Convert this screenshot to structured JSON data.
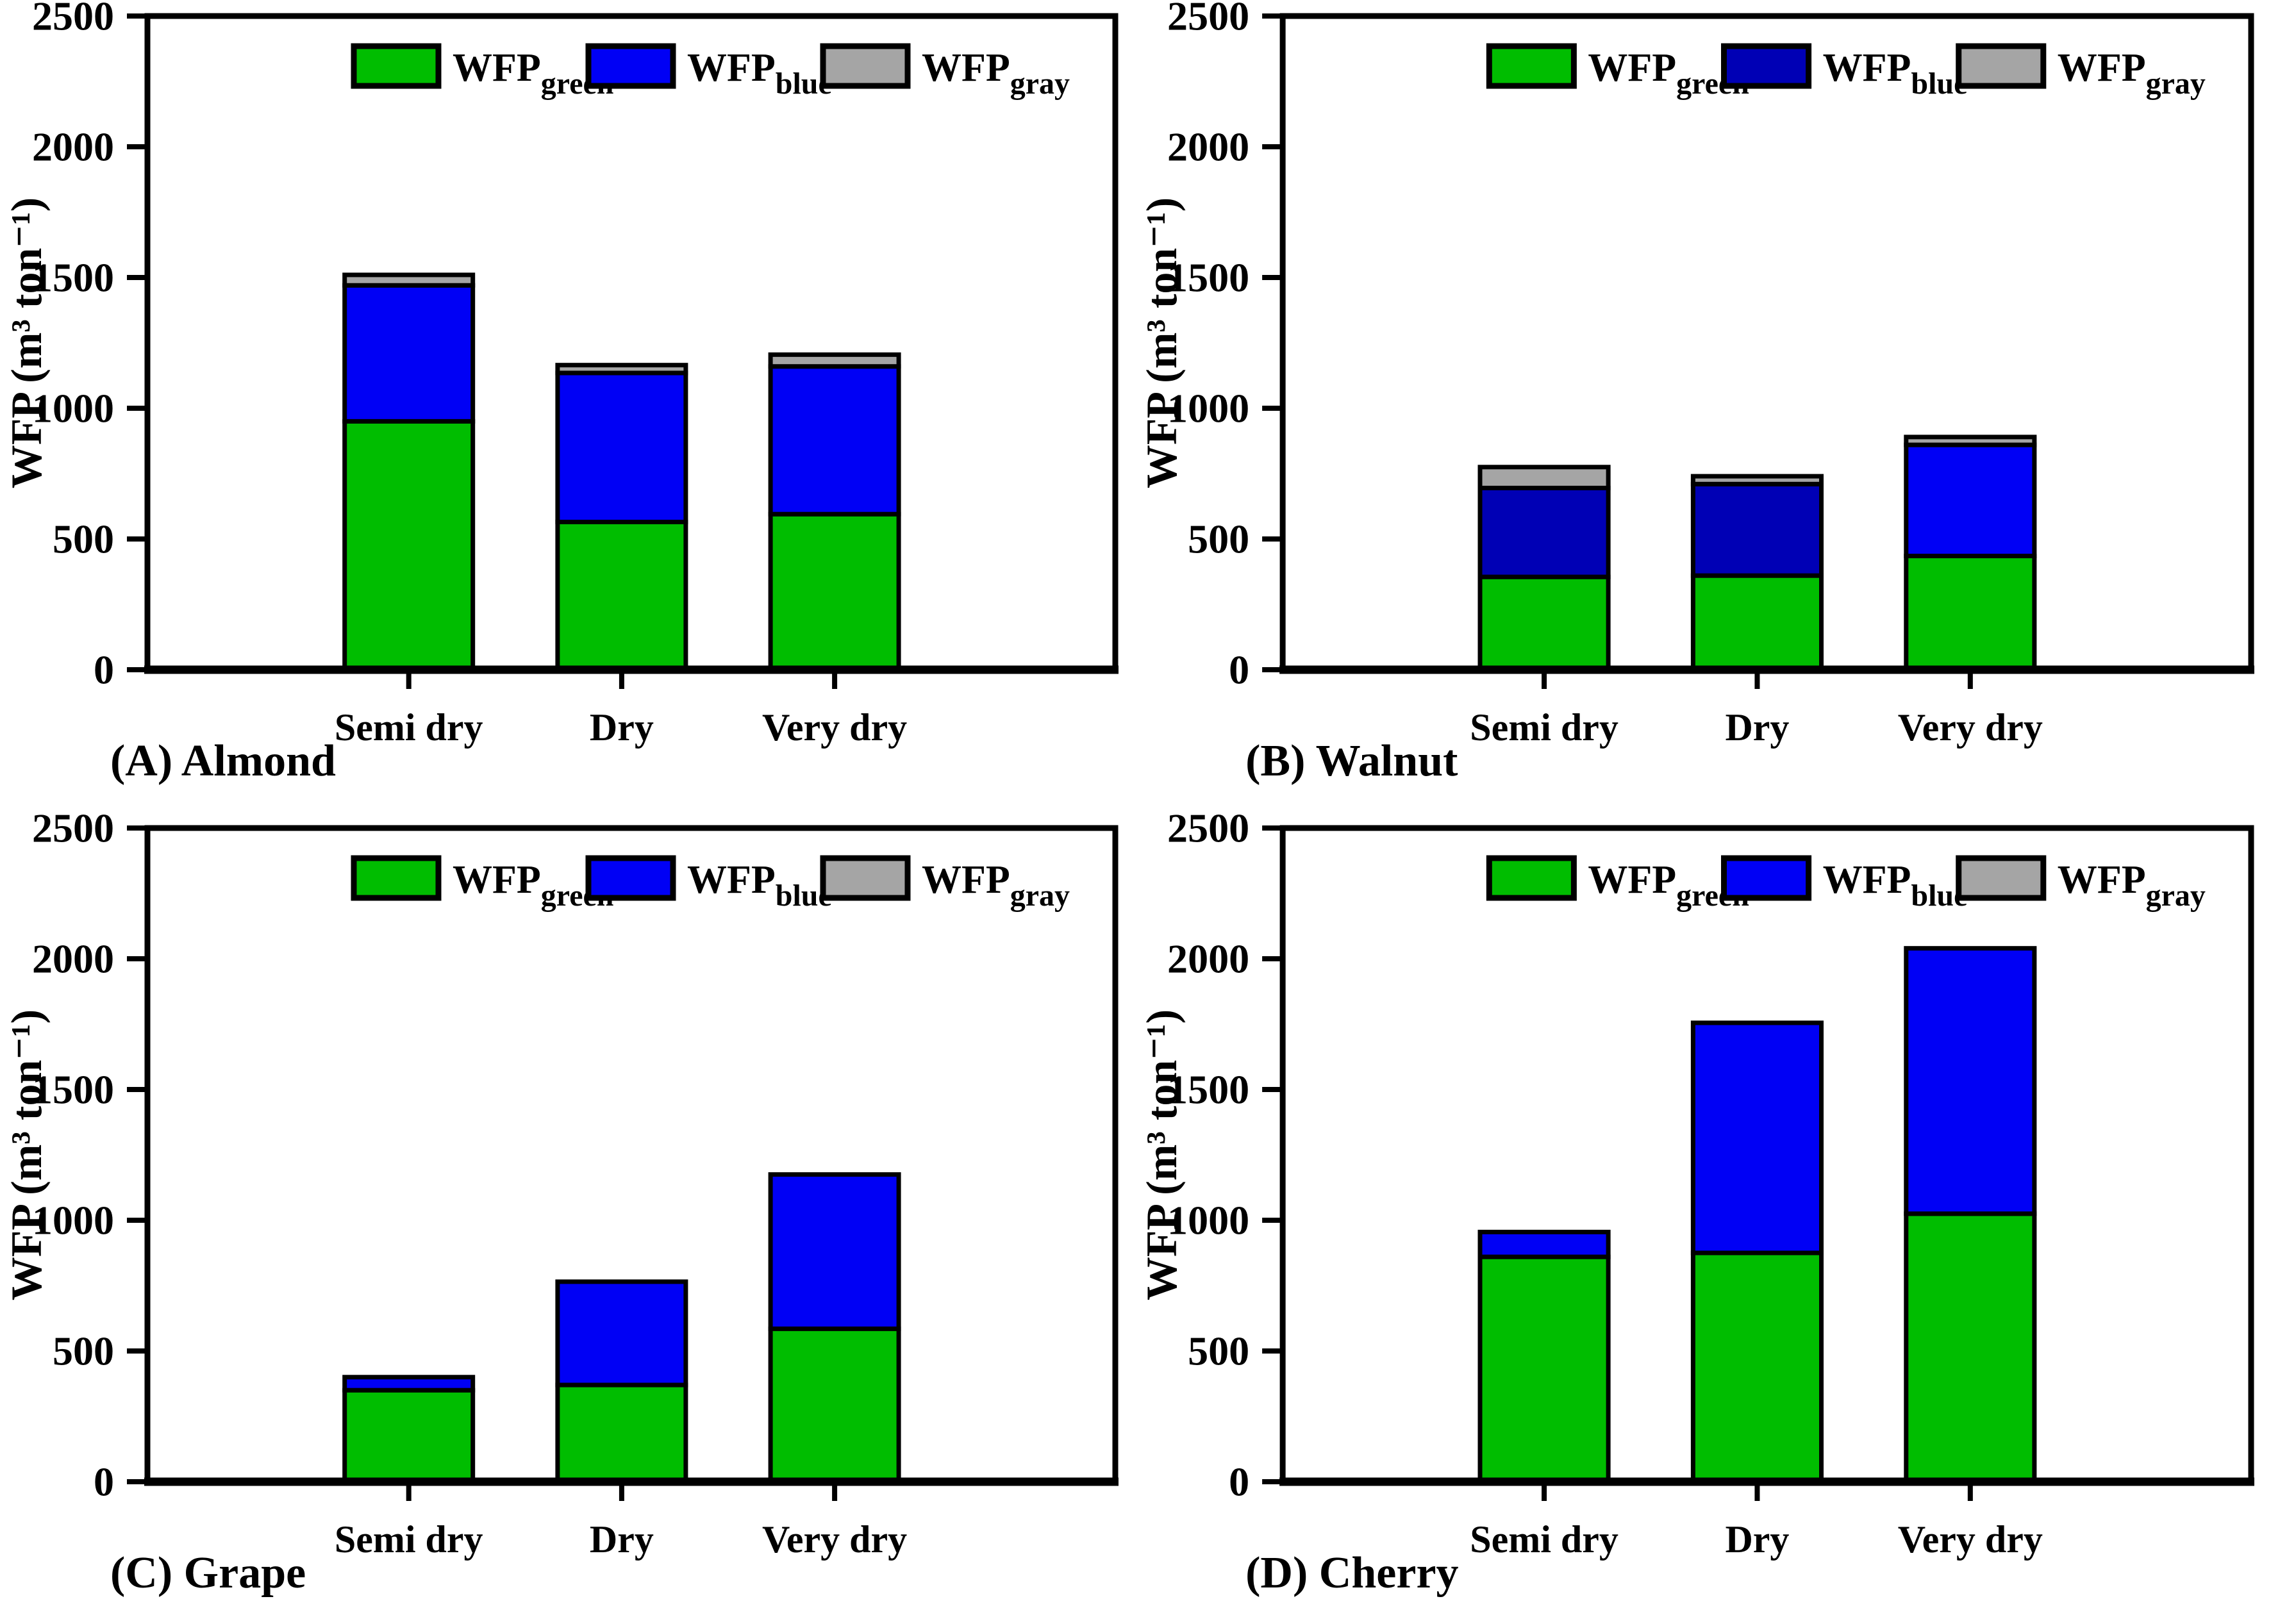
{
  "figure": {
    "ylabel": "WFP (m³ ton⁻¹)",
    "background": "#FFFFFF",
    "axis_color": "#000000",
    "colors": {
      "green": "#00BD00",
      "blue": "#0000F5",
      "navy": "#0000B5",
      "gray": "#A5A5A5"
    },
    "legend_labels": [
      {
        "label": "WFP",
        "sub": "green",
        "color_key": "green"
      },
      {
        "label": "WFP",
        "sub": "blue",
        "color_key": "blue"
      },
      {
        "label": "WFP",
        "sub": "gray",
        "color_key": "gray"
      }
    ]
  },
  "chart_data": [
    {
      "type": "bar",
      "stacked": true,
      "panel": "A",
      "caption": "(A) Almond",
      "categories": [
        "Semi dry",
        "Dry",
        "Very dry"
      ],
      "series": [
        {
          "name": "WFP_green",
          "values": [
            950,
            565,
            595
          ],
          "color_keys": [
            "green",
            "green",
            "green"
          ]
        },
        {
          "name": "WFP_blue",
          "values": [
            520,
            570,
            565
          ],
          "color_keys": [
            "blue",
            "blue",
            "blue"
          ]
        },
        {
          "name": "WFP_gray",
          "values": [
            40,
            30,
            45
          ],
          "color_keys": [
            "gray",
            "gray",
            "gray"
          ]
        }
      ],
      "totals": [
        1510,
        1165,
        1205
      ],
      "ylim": [
        0,
        2500
      ],
      "ytick_step": 500,
      "ytick_labels": [
        "0",
        "500",
        "1000",
        "1500",
        "2000",
        "2500"
      ],
      "legend_blue_key": "blue",
      "grid": false,
      "legend_position": "top-inside"
    },
    {
      "type": "bar",
      "stacked": true,
      "panel": "B",
      "caption": "(B) Walnut",
      "categories": [
        "Semi dry",
        "Dry",
        "Very dry"
      ],
      "series": [
        {
          "name": "WFP_green",
          "values": [
            355,
            360,
            435
          ],
          "color_keys": [
            "green",
            "green",
            "green"
          ]
        },
        {
          "name": "WFP_blue",
          "values": [
            340,
            350,
            425
          ],
          "color_keys": [
            "navy",
            "navy",
            "blue"
          ]
        },
        {
          "name": "WFP_gray",
          "values": [
            80,
            30,
            30
          ],
          "color_keys": [
            "gray",
            "gray",
            "gray"
          ]
        }
      ],
      "totals": [
        775,
        740,
        890
      ],
      "ylim": [
        0,
        2500
      ],
      "ytick_step": 500,
      "ytick_labels": [
        "0",
        "500",
        "1000",
        "1500",
        "2000",
        "2500"
      ],
      "legend_blue_key": "navy",
      "grid": false,
      "legend_position": "top-inside"
    },
    {
      "type": "bar",
      "stacked": true,
      "panel": "C",
      "caption": "(C) Grape",
      "categories": [
        "Semi dry",
        "Dry",
        "Very dry"
      ],
      "series": [
        {
          "name": "WFP_green",
          "values": [
            350,
            370,
            585
          ],
          "color_keys": [
            "green",
            "green",
            "green"
          ]
        },
        {
          "name": "WFP_blue",
          "values": [
            50,
            395,
            590
          ],
          "color_keys": [
            "blue",
            "blue",
            "blue"
          ]
        },
        {
          "name": "WFP_gray",
          "values": [
            0,
            0,
            0
          ],
          "color_keys": [
            "gray",
            "gray",
            "gray"
          ]
        }
      ],
      "totals": [
        400,
        765,
        1175
      ],
      "ylim": [
        0,
        2500
      ],
      "ytick_step": 500,
      "ytick_labels": [
        "0",
        "500",
        "1000",
        "1500",
        "2000",
        "2500"
      ],
      "legend_blue_key": "blue",
      "grid": false,
      "legend_position": "top-inside"
    },
    {
      "type": "bar",
      "stacked": true,
      "panel": "D",
      "caption": "(D) Cherry",
      "categories": [
        "Semi dry",
        "Dry",
        "Very dry"
      ],
      "series": [
        {
          "name": "WFP_green",
          "values": [
            860,
            875,
            1025
          ],
          "color_keys": [
            "green",
            "green",
            "green"
          ]
        },
        {
          "name": "WFP_blue",
          "values": [
            95,
            880,
            1015
          ],
          "color_keys": [
            "blue",
            "blue",
            "blue"
          ]
        },
        {
          "name": "WFP_gray",
          "values": [
            0,
            0,
            0
          ],
          "color_keys": [
            "gray",
            "gray",
            "gray"
          ]
        }
      ],
      "totals": [
        955,
        1755,
        2040
      ],
      "ylim": [
        0,
        2500
      ],
      "ytick_step": 500,
      "ytick_labels": [
        "0",
        "500",
        "1000",
        "1500",
        "2000",
        "2500"
      ],
      "legend_blue_key": "blue",
      "grid": false,
      "legend_position": "top-inside"
    }
  ]
}
